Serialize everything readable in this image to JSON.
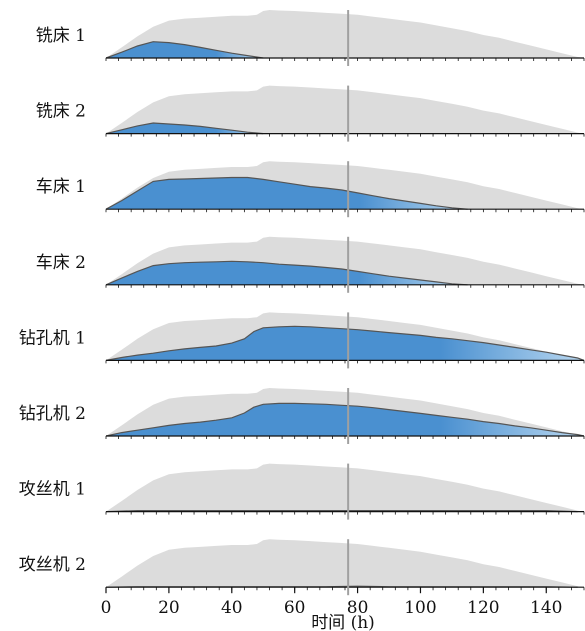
{
  "chart_data": {
    "type": "area",
    "xlabel": "时间 (h)",
    "x_ticks": [
      0,
      20,
      40,
      60,
      80,
      100,
      120,
      140
    ],
    "xlim": [
      0,
      152
    ],
    "marker_x": 77,
    "colors": {
      "background_area": "#dcdcdc",
      "load_dark": "#4a90d0",
      "load_light": "#b8d7f0",
      "outline": "#555555",
      "marker": "#a0a0a0"
    },
    "background_profile": {
      "x": [
        0,
        5,
        10,
        15,
        20,
        25,
        30,
        35,
        40,
        45,
        48,
        50,
        52,
        55,
        60,
        65,
        70,
        75,
        80,
        85,
        90,
        95,
        100,
        105,
        110,
        115,
        120,
        125,
        130,
        135,
        140,
        145,
        150,
        152
      ],
      "y": [
        0,
        0.22,
        0.45,
        0.65,
        0.78,
        0.82,
        0.84,
        0.86,
        0.88,
        0.88,
        0.9,
        0.98,
        1.0,
        0.99,
        0.98,
        0.96,
        0.94,
        0.92,
        0.9,
        0.86,
        0.82,
        0.78,
        0.74,
        0.68,
        0.62,
        0.56,
        0.48,
        0.42,
        0.34,
        0.26,
        0.18,
        0.1,
        0.02,
        0
      ]
    },
    "series": [
      {
        "name": "铣床 1",
        "x": [
          0,
          5,
          10,
          15,
          20,
          25,
          30,
          35,
          40,
          45,
          50
        ],
        "y": [
          0,
          0.12,
          0.25,
          0.34,
          0.32,
          0.28,
          0.22,
          0.16,
          0.1,
          0.05,
          0
        ]
      },
      {
        "name": "铣床 2",
        "x": [
          0,
          5,
          10,
          15,
          20,
          25,
          30,
          35,
          40,
          45,
          50
        ],
        "y": [
          0,
          0.08,
          0.16,
          0.22,
          0.2,
          0.18,
          0.15,
          0.11,
          0.07,
          0.03,
          0
        ]
      },
      {
        "name": "车床 1",
        "x": [
          0,
          5,
          10,
          15,
          20,
          25,
          30,
          35,
          40,
          45,
          50,
          55,
          60,
          65,
          70,
          75,
          80,
          85,
          90,
          95,
          100,
          105,
          110,
          115
        ],
        "y": [
          0,
          0.18,
          0.38,
          0.58,
          0.62,
          0.63,
          0.64,
          0.65,
          0.66,
          0.66,
          0.62,
          0.57,
          0.52,
          0.47,
          0.44,
          0.4,
          0.34,
          0.28,
          0.22,
          0.17,
          0.12,
          0.07,
          0.03,
          0
        ]
      },
      {
        "name": "车床 2",
        "x": [
          0,
          5,
          10,
          15,
          20,
          25,
          30,
          35,
          40,
          45,
          50,
          55,
          60,
          65,
          70,
          75,
          80,
          85,
          90,
          95,
          100,
          105,
          110,
          115
        ],
        "y": [
          0,
          0.14,
          0.28,
          0.4,
          0.44,
          0.46,
          0.47,
          0.48,
          0.49,
          0.48,
          0.46,
          0.43,
          0.41,
          0.39,
          0.36,
          0.33,
          0.28,
          0.23,
          0.18,
          0.14,
          0.1,
          0.06,
          0.02,
          0
        ]
      },
      {
        "name": "钻孔机 1",
        "x": [
          0,
          5,
          10,
          15,
          20,
          25,
          30,
          35,
          40,
          44,
          47,
          50,
          55,
          60,
          65,
          70,
          75,
          80,
          85,
          90,
          95,
          100,
          105,
          110,
          115,
          120,
          125,
          130,
          135,
          140,
          145,
          150,
          152
        ],
        "y": [
          0,
          0.06,
          0.11,
          0.15,
          0.2,
          0.24,
          0.27,
          0.3,
          0.36,
          0.45,
          0.6,
          0.68,
          0.7,
          0.71,
          0.7,
          0.68,
          0.66,
          0.64,
          0.61,
          0.58,
          0.55,
          0.52,
          0.48,
          0.45,
          0.41,
          0.37,
          0.32,
          0.27,
          0.22,
          0.17,
          0.11,
          0.05,
          0
        ]
      },
      {
        "name": "钻孔机 2",
        "x": [
          0,
          5,
          10,
          15,
          20,
          25,
          30,
          35,
          40,
          44,
          47,
          50,
          55,
          60,
          65,
          70,
          75,
          80,
          85,
          90,
          95,
          100,
          105,
          110,
          115,
          120,
          125,
          130,
          135,
          140,
          145,
          150,
          152
        ],
        "y": [
          0,
          0.07,
          0.12,
          0.17,
          0.22,
          0.26,
          0.29,
          0.33,
          0.38,
          0.48,
          0.6,
          0.66,
          0.68,
          0.68,
          0.67,
          0.66,
          0.64,
          0.62,
          0.59,
          0.55,
          0.51,
          0.47,
          0.43,
          0.39,
          0.35,
          0.3,
          0.26,
          0.21,
          0.17,
          0.12,
          0.07,
          0.03,
          0
        ]
      },
      {
        "name": "攻丝机 1",
        "x": [
          0,
          10,
          20,
          30,
          40,
          50,
          60,
          70,
          80,
          90,
          100,
          110,
          120,
          130,
          140,
          150
        ],
        "y": [
          0,
          0.02,
          0.02,
          0.02,
          0.02,
          0.02,
          0.02,
          0.02,
          0.02,
          0.02,
          0.02,
          0.02,
          0.02,
          0.02,
          0.02,
          0
        ]
      },
      {
        "name": "攻丝机 2",
        "x": [
          0,
          10,
          20,
          30,
          40,
          50,
          60,
          70,
          80,
          90,
          100,
          110,
          120,
          130,
          140,
          150
        ],
        "y": [
          0,
          0.01,
          0.01,
          0.01,
          0.01,
          0.01,
          0.01,
          0.01,
          0.02,
          0.01,
          0.01,
          0.01,
          0.01,
          0.01,
          0.01,
          0
        ]
      }
    ]
  }
}
